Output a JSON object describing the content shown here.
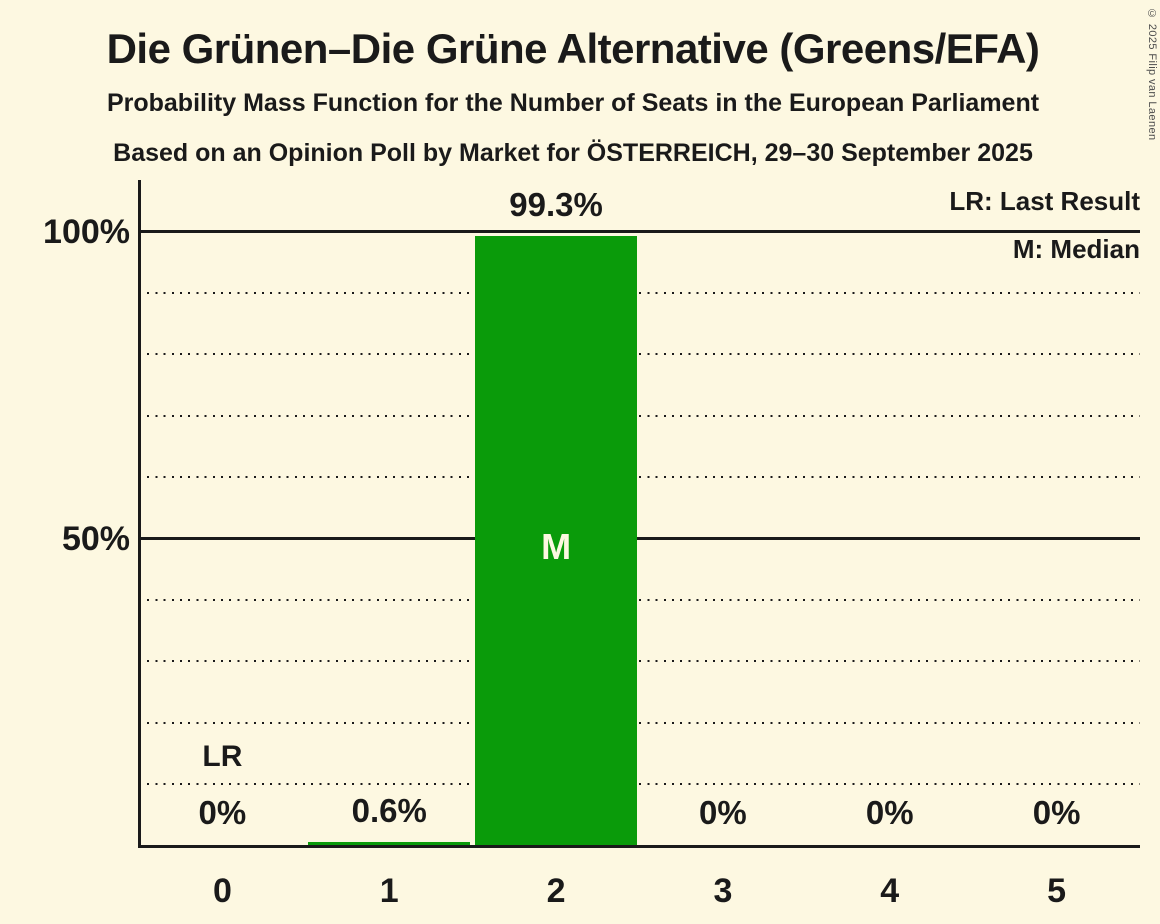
{
  "title": "Die Grünen–Die Grüne Alternative (Greens/EFA)",
  "subtitle1": "Probability Mass Function for the Number of Seats in the European Parliament",
  "subtitle2": "Based on an Opinion Poll by Market for ÖSTERREICH, 29–30 September 2025",
  "copyright": "© 2025 Filip van Laenen",
  "legend": {
    "lr": "LR: Last Result",
    "m": "M: Median"
  },
  "colors": {
    "background": "#FDF8E1",
    "bar_green": "#0A9B0A",
    "text": "#1A1A1A",
    "median_label": "#FDF8E1",
    "copyright_text": "#4D4D4D"
  },
  "chart_data": {
    "type": "bar",
    "title": "Die Grünen–Die Grüne Alternative (Greens/EFA)",
    "xlabel": "Number of seats",
    "ylabel": "Probability",
    "categories": [
      "0",
      "1",
      "2",
      "3",
      "4",
      "5"
    ],
    "values": [
      0,
      0.6,
      99.3,
      0,
      0,
      0
    ],
    "value_labels": [
      "0%",
      "0.6%",
      "99.3%",
      "0%",
      "0%",
      "0%"
    ],
    "ylim": [
      0,
      100
    ],
    "yticks": [
      {
        "value": 100,
        "label": "100%"
      },
      {
        "value": 50,
        "label": "50%"
      }
    ],
    "gridlines_solid": [
      50,
      100
    ],
    "gridlines_dotted": [
      10,
      20,
      30,
      40,
      60,
      70,
      80,
      90
    ],
    "grid": "on",
    "legend_position": "top-right",
    "median_seats": "2",
    "median_marker": "M",
    "last_result_seats": "0",
    "last_result_marker": "LR"
  }
}
